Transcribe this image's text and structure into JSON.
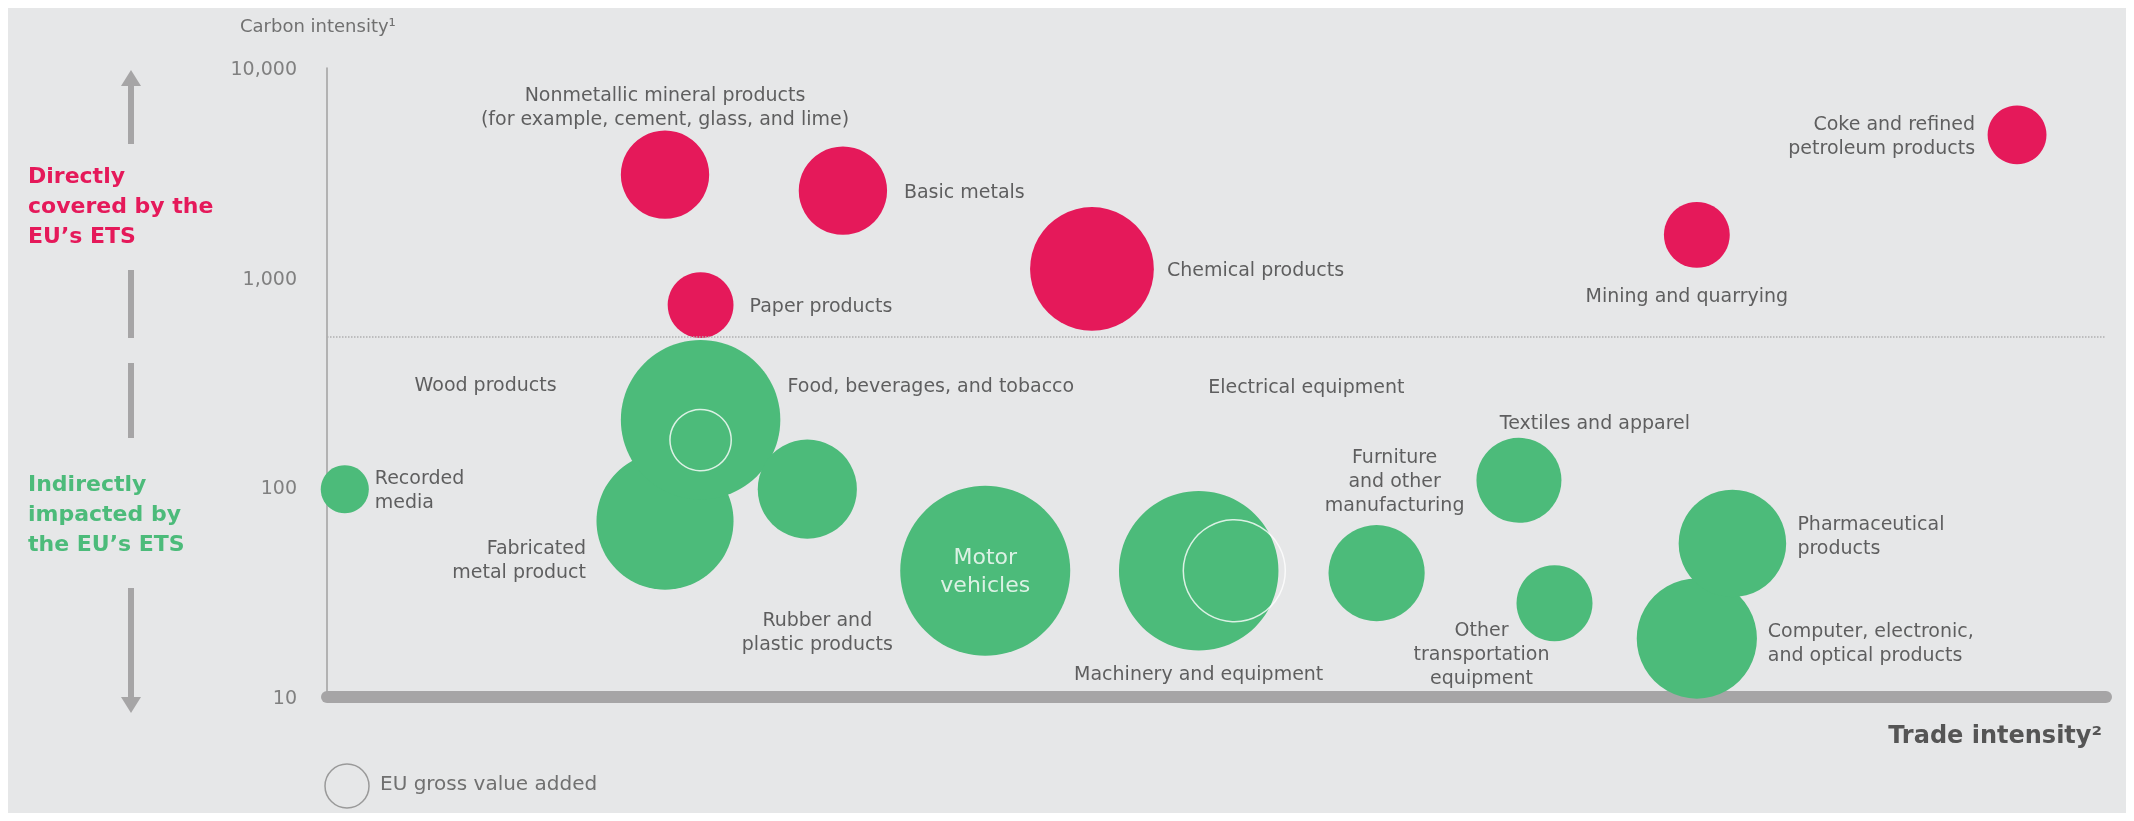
{
  "chart_data": {
    "type": "bubble",
    "ylabel": "Carbon intensity¹",
    "xlabel": "Trade intensity²",
    "legend_title": "EU gross value added",
    "log": true,
    "ylim": [
      10,
      10000
    ],
    "yticks": [
      10,
      100,
      {
        "value": 1000,
        "label": "1,000"
      },
      {
        "value": 10000,
        "label": "10,000"
      }
    ],
    "categories": [
      null,
      null,
      null,
      null,
      null,
      null,
      null,
      null,
      null,
      null,
      null,
      null,
      null,
      null,
      null,
      null,
      null,
      null,
      null,
      null,
      null,
      null,
      null,
      null,
      null,
      null,
      null,
      null,
      null,
      null,
      null,
      null,
      null,
      null,
      null,
      null,
      null,
      null,
      null,
      null,
      null,
      null,
      null,
      null,
      null,
      null,
      null,
      null,
      null,
      null
    ],
    "series": [
      {
        "name": "Directly covered by the EU’s ETS",
        "color": "#e5195a",
        "values": [
          null,
          null,
          null,
          null,
          null,
          null,
          null,
          null,
          null,
          3100,
          740,
          null,
          null,
          null,
          2600,
          null,
          null,
          null,
          null,
          null,
          null,
          1100,
          null,
          null,
          null,
          null,
          null,
          null,
          null,
          null,
          null,
          null,
          null,
          null,
          null,
          null,
          null,
          null,
          1600,
          null,
          null,
          null,
          null,
          null,
          null,
          null,
          null,
          4800,
          null,
          null
        ],
        "sizes": [
          null,
          null,
          null,
          null,
          null,
          null,
          null,
          null,
          null,
          0.27,
          0.15,
          null,
          null,
          null,
          0.27,
          null,
          null,
          null,
          null,
          null,
          null,
          0.53,
          null,
          null,
          null,
          null,
          null,
          null,
          null,
          null,
          null,
          null,
          null,
          null,
          null,
          null,
          null,
          null,
          0.15,
          null,
          null,
          null,
          null,
          null,
          null,
          null,
          null,
          0.12,
          null,
          null
        ]
      },
      {
        "name": "Indirectly impacted by the EU’s ETS",
        "color": "#4cbb7a",
        "values": [
          98,
          null,
          null,
          null,
          null,
          null,
          null,
          null,
          null,
          69,
          210,
          null,
          null,
          98,
          null,
          null,
          null,
          null,
          40,
          null,
          null,
          null,
          null,
          null,
          40,
          null,
          null,
          null,
          null,
          39,
          null,
          null,
          null,
          108,
          28,
          null,
          null,
          null,
          19,
          54,
          null,
          null,
          null,
          null,
          null,
          null,
          null,
          null,
          null,
          null
        ],
        "sizes": [
          0.08,
          null,
          null,
          null,
          null,
          null,
          null,
          null,
          null,
          0.65,
          0.88,
          null,
          null,
          0.34,
          null,
          null,
          null,
          null,
          1,
          null,
          null,
          null,
          null,
          null,
          0.88,
          null,
          null,
          null,
          null,
          0.32,
          null,
          null,
          null,
          0.25,
          0.2,
          null,
          null,
          null,
          0.5,
          0.4,
          null,
          null,
          null,
          null,
          null,
          null,
          null,
          null,
          null,
          null
        ]
      },
      {
        "color": "#ffffff",
        "values": [
          null,
          null,
          null,
          null,
          null,
          null,
          null,
          null,
          null,
          null,
          168,
          null,
          null,
          null,
          null,
          null,
          null,
          null,
          null,
          null,
          null,
          null,
          null,
          null,
          null,
          40,
          null,
          null,
          null,
          null,
          null,
          null,
          null,
          null,
          null,
          null,
          null,
          null,
          null,
          null,
          null,
          null,
          null,
          null,
          null,
          null,
          null,
          null,
          null,
          null
        ],
        "sizes": [
          null,
          null,
          null,
          null,
          null,
          null,
          null,
          null,
          null,
          null,
          0.13,
          null,
          null,
          null,
          null,
          null,
          null,
          null,
          null,
          null,
          null,
          null,
          null,
          null,
          null,
          0.36,
          null,
          null,
          null,
          null,
          null,
          null,
          null,
          null,
          null,
          null,
          null,
          null,
          null,
          null,
          null,
          null,
          null,
          null,
          null,
          null,
          null,
          null,
          null,
          null
        ]
      }
    ],
    "ref_lines": [
      {
        "axis": "y",
        "value": 520,
        "color": "#b0b0b0",
        "line_style": "dotted"
      }
    ],
    "annotations": [
      "Nonmetallic mineral products\n(for example, cement, glass, and lime)",
      "Basic metals",
      "Chemical products",
      "Paper products",
      "Mining and quarrying",
      "Coke and refined\npetroleum products",
      "Food, beverages, and tobacco",
      "Wood products",
      "Recorded\nmedia",
      "Fabricated\nmetal product",
      "Rubber and\nplastic products",
      "Motor\nvehicles",
      "Machinery and equipment",
      "Electrical equipment",
      "Furniture\nand other\nmanufacturing",
      "Textiles and apparel",
      "Other\ntransportation\nequipment",
      "Pharmaceutical\nproducts",
      "Computer, electronic,\nand optical products"
    ]
  }
}
